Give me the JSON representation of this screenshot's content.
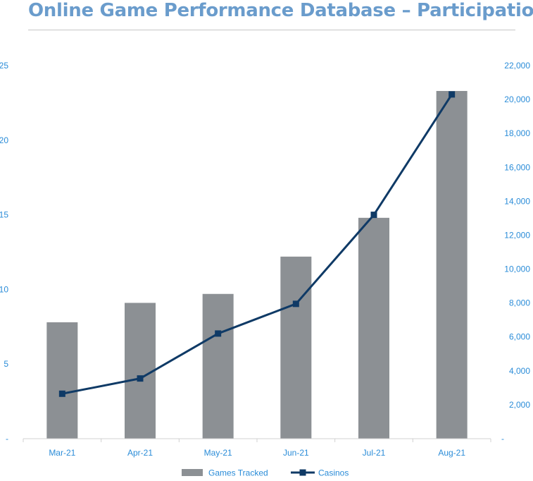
{
  "title": "Online Game Performance Database – Participation",
  "chart_data": {
    "type": "bar",
    "title": "Online Game Performance Database – Participation",
    "categories": [
      "Mar-21",
      "Apr-21",
      "May-21",
      "Jun-21",
      "Jul-21",
      "Aug-21"
    ],
    "series": [
      {
        "name": "Games Tracked",
        "type": "bar",
        "axis": "left",
        "values": [
          7.8,
          9.1,
          9.7,
          12.2,
          14.8,
          23.3
        ],
        "color": "#8c9094"
      },
      {
        "name": "Casinos",
        "type": "line",
        "axis": "right",
        "values": [
          2650,
          3550,
          6200,
          7950,
          13200,
          20300
        ],
        "color": "#0f3a66"
      }
    ],
    "left_axis": {
      "min": 0,
      "max": 25,
      "ticks": [
        {
          "value": 0,
          "label": "-"
        },
        {
          "value": 5,
          "label": "5"
        },
        {
          "value": 10,
          "label": "10"
        },
        {
          "value": 15,
          "label": "15"
        },
        {
          "value": 20,
          "label": "20"
        },
        {
          "value": 25,
          "label": "25"
        }
      ]
    },
    "right_axis": {
      "min": 0,
      "max": 22000,
      "ticks": [
        {
          "value": 0,
          "label": "-"
        },
        {
          "value": 2000,
          "label": "2,000"
        },
        {
          "value": 4000,
          "label": "4,000"
        },
        {
          "value": 6000,
          "label": "6,000"
        },
        {
          "value": 8000,
          "label": "8,000"
        },
        {
          "value": 10000,
          "label": "10,000"
        },
        {
          "value": 12000,
          "label": "12,000"
        },
        {
          "value": 14000,
          "label": "14,000"
        },
        {
          "value": 16000,
          "label": "16,000"
        },
        {
          "value": 18000,
          "label": "18,000"
        },
        {
          "value": 20000,
          "label": "20,000"
        },
        {
          "value": 22000,
          "label": "22,000"
        }
      ]
    },
    "grid": false,
    "legend": {
      "position": "bottom",
      "items": [
        "Games Tracked",
        "Casinos"
      ]
    }
  }
}
